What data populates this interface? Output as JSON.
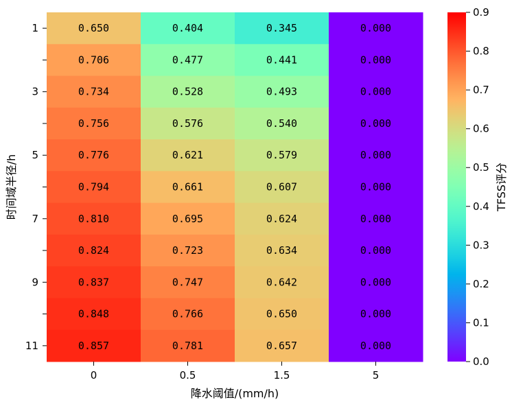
{
  "chart_data": {
    "type": "heatmap",
    "title": "",
    "xlabel": "降水阈值/(mm/h)",
    "ylabel": "时间域半径/h",
    "x_categories": [
      "0",
      "0.5",
      "1.5",
      "5"
    ],
    "y_categories": [
      "1",
      "",
      "3",
      "",
      "5",
      "",
      "7",
      "",
      "9",
      "",
      "11"
    ],
    "values": [
      [
        0.65,
        0.404,
        0.345,
        0.0
      ],
      [
        0.706,
        0.477,
        0.441,
        0.0
      ],
      [
        0.734,
        0.528,
        0.493,
        0.0
      ],
      [
        0.756,
        0.576,
        0.54,
        0.0
      ],
      [
        0.776,
        0.621,
        0.579,
        0.0
      ],
      [
        0.794,
        0.661,
        0.607,
        0.0
      ],
      [
        0.81,
        0.695,
        0.624,
        0.0
      ],
      [
        0.824,
        0.723,
        0.634,
        0.0
      ],
      [
        0.837,
        0.747,
        0.642,
        0.0
      ],
      [
        0.848,
        0.766,
        0.65,
        0.0
      ],
      [
        0.857,
        0.781,
        0.657,
        0.0
      ]
    ],
    "cell_labels": [
      [
        "0.650",
        "0.404",
        "0.345",
        "0.000"
      ],
      [
        "0.706",
        "0.477",
        "0.441",
        "0.000"
      ],
      [
        "0.734",
        "0.528",
        "0.493",
        "0.000"
      ],
      [
        "0.756",
        "0.576",
        "0.540",
        "0.000"
      ],
      [
        "0.776",
        "0.621",
        "0.579",
        "0.000"
      ],
      [
        "0.794",
        "0.661",
        "0.607",
        "0.000"
      ],
      [
        "0.810",
        "0.695",
        "0.624",
        "0.000"
      ],
      [
        "0.824",
        "0.723",
        "0.634",
        "0.000"
      ],
      [
        "0.837",
        "0.747",
        "0.642",
        "0.000"
      ],
      [
        "0.848",
        "0.766",
        "0.650",
        "0.000"
      ],
      [
        "0.857",
        "0.781",
        "0.657",
        "0.000"
      ]
    ],
    "colorbar": {
      "label": "TFSS评分",
      "range": [
        0.0,
        0.9
      ],
      "ticks": [
        "0.0",
        "0.1",
        "0.2",
        "0.3",
        "0.4",
        "0.5",
        "0.6",
        "0.7",
        "0.8",
        "0.9"
      ],
      "colormap": "rainbow"
    }
  }
}
